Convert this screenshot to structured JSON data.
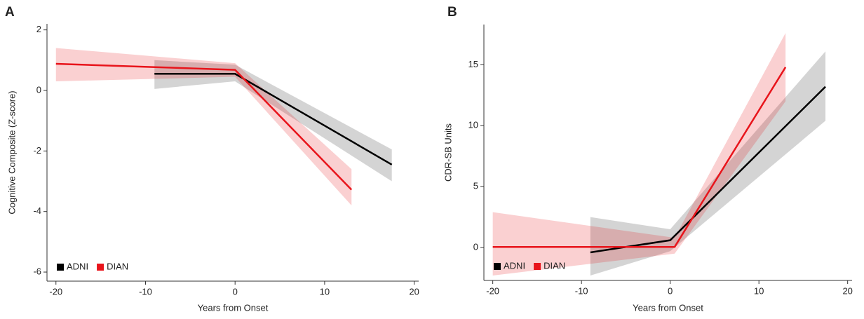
{
  "chart_data": [
    {
      "type": "line",
      "panel_label": "A",
      "xlabel": "Years from Onset",
      "ylabel": "Cognitive Composite (Z-score)",
      "xlim": [
        -21,
        20.5
      ],
      "ylim": [
        -6.3,
        2.2
      ],
      "xticks": [
        -20,
        -10,
        0,
        10,
        20
      ],
      "yticks": [
        -6,
        -4,
        -2,
        0,
        2
      ],
      "legend": "lower left",
      "series": [
        {
          "name": "ADNI",
          "color": "#000000",
          "x": [
            -9,
            0,
            17.5
          ],
          "values": [
            0.55,
            0.55,
            -2.45
          ],
          "band_lower": [
            0.05,
            0.3,
            -3.0
          ],
          "band_upper": [
            1.0,
            0.85,
            -1.95
          ]
        },
        {
          "name": "DIAN",
          "color": "#e8141b",
          "x": [
            -20,
            0,
            13
          ],
          "values": [
            0.88,
            0.68,
            -3.28
          ],
          "band_lower": [
            0.3,
            0.45,
            -3.8
          ],
          "band_upper": [
            1.4,
            0.9,
            -2.6
          ]
        }
      ]
    },
    {
      "type": "line",
      "panel_label": "B",
      "xlabel": "Years from Onset",
      "ylabel": "CDR-SB Units",
      "xlim": [
        -21,
        20.5
      ],
      "ylim": [
        -2.7,
        18.3
      ],
      "xticks": [
        -20,
        -10,
        0,
        10,
        20
      ],
      "yticks": [
        0,
        5,
        10,
        15
      ],
      "legend": "lower left",
      "series": [
        {
          "name": "ADNI",
          "color": "#000000",
          "x": [
            -9,
            0,
            17.5
          ],
          "values": [
            -0.4,
            0.6,
            13.2
          ],
          "band_lower": [
            -2.3,
            -0.3,
            10.4
          ],
          "band_upper": [
            2.5,
            1.5,
            16.1
          ]
        },
        {
          "name": "DIAN",
          "color": "#e8141b",
          "x": [
            -20,
            0.5,
            13
          ],
          "values": [
            0.05,
            0.05,
            14.8
          ],
          "band_lower": [
            -2.3,
            -0.5,
            12.0
          ],
          "band_upper": [
            2.9,
            0.8,
            17.6
          ]
        }
      ]
    }
  ]
}
